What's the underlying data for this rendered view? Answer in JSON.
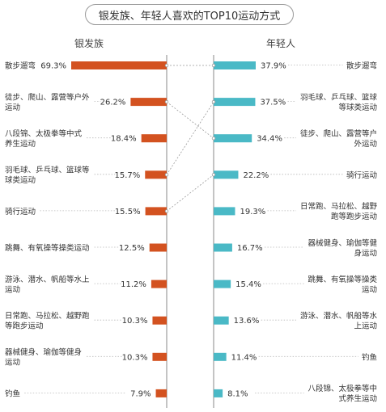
{
  "title": "银发族、年轻人喜欢的TOP10运动方式",
  "chart_data": {
    "type": "bar",
    "layout": "back-to-back horizontal bars with connector lines",
    "colors": {
      "silver": "#d35220",
      "young": "#4ab9c6",
      "axis": "#8a8a8a"
    },
    "series": [
      {
        "name": "银发族",
        "items": [
          {
            "category": "散步遛弯",
            "lines": [
              "散步遛弯"
            ],
            "value": 69.3,
            "label": "69.3%"
          },
          {
            "category": "徒步、爬山、露营等户外运动",
            "lines": [
              "徒步、爬山、露营等户外",
              "运动"
            ],
            "value": 26.2,
            "label": "26.2%"
          },
          {
            "category": "八段锦、太极拳等中式养生运动",
            "lines": [
              "八段锦、太极拳等中式",
              "养生运动"
            ],
            "value": 18.4,
            "label": "18.4%"
          },
          {
            "category": "羽毛球、乒乓球、篮球等球类运动",
            "lines": [
              "羽毛球、乒乓球、篮球等",
              "球类运动"
            ],
            "value": 15.7,
            "label": "15.7%"
          },
          {
            "category": "骑行运动",
            "lines": [
              "骑行运动"
            ],
            "value": 15.5,
            "label": "15.5%"
          },
          {
            "category": "跳舞、有氧操等操类运动",
            "lines": [
              "跳舞、有氧操等操类运动"
            ],
            "value": 12.5,
            "label": "12.5%"
          },
          {
            "category": "游泳、潜水、帆船等水上运动",
            "lines": [
              "游泳、潜水、帆船等水上",
              "运动"
            ],
            "value": 11.2,
            "label": "11.2%"
          },
          {
            "category": "日常跑、马拉松、越野跑等跑步运动",
            "lines": [
              "日常跑、马拉松、越野跑",
              "等跑步运动"
            ],
            "value": 10.3,
            "label": "10.3%"
          },
          {
            "category": "器械健身、瑜伽等健身运动",
            "lines": [
              "器械健身、瑜伽等健身",
              "运动"
            ],
            "value": 10.3,
            "label": "10.3%"
          },
          {
            "category": "钓鱼",
            "lines": [
              "钓鱼"
            ],
            "value": 7.9,
            "label": "7.9%"
          }
        ]
      },
      {
        "name": "年轻人",
        "items": [
          {
            "category": "散步遛弯",
            "lines": [
              "散步遛弯"
            ],
            "value": 37.9,
            "label": "37.9%"
          },
          {
            "category": "羽毛球、乒乓球、篮球等球类运动",
            "lines": [
              "羽毛球、乒乓球、篮球",
              "等球类运动"
            ],
            "value": 37.5,
            "label": "37.5%"
          },
          {
            "category": "徒步、爬山、露营等户外运动",
            "lines": [
              "徒步、爬山、露营等户",
              "外运动"
            ],
            "value": 34.4,
            "label": "34.4%"
          },
          {
            "category": "骑行运动",
            "lines": [
              "骑行运动"
            ],
            "value": 22.2,
            "label": "22.2%"
          },
          {
            "category": "日常跑、马拉松、越野跑等跑步运动",
            "lines": [
              "日常跑、马拉松、越野",
              "跑等跑步运动"
            ],
            "value": 19.3,
            "label": "19.3%"
          },
          {
            "category": "器械健身、瑜伽等健身运动",
            "lines": [
              "器械健身、瑜伽等健",
              "身运动"
            ],
            "value": 16.7,
            "label": "16.7%"
          },
          {
            "category": "跳舞、有氧操等操类运动",
            "lines": [
              "跳舞、有氧操等操类",
              "运动"
            ],
            "value": 15.4,
            "label": "15.4%"
          },
          {
            "category": "游泳、潜水、帆船等水上运动",
            "lines": [
              "游泳、潜水、帆船等水",
              "上运动"
            ],
            "value": 13.6,
            "label": "13.6%"
          },
          {
            "category": "钓鱼",
            "lines": [
              "钓鱼"
            ],
            "value": 11.4,
            "label": "11.4%"
          },
          {
            "category": "八段锦、太极拳等中式养生运动",
            "lines": [
              "八段锦、太极拳等中",
              "式养生运动"
            ],
            "value": 8.1,
            "label": "8.1%"
          }
        ]
      }
    ],
    "connectors": [
      [
        "散步遛弯",
        "散步遛弯"
      ],
      [
        "徒步、爬山、露营等户外运动",
        "徒步、爬山、露营等户外运动"
      ],
      [
        "羽毛球、乒乓球、篮球等球类运动",
        "羽毛球、乒乓球、篮球等球类运动"
      ],
      [
        "骑行运动",
        "骑行运动"
      ]
    ]
  }
}
